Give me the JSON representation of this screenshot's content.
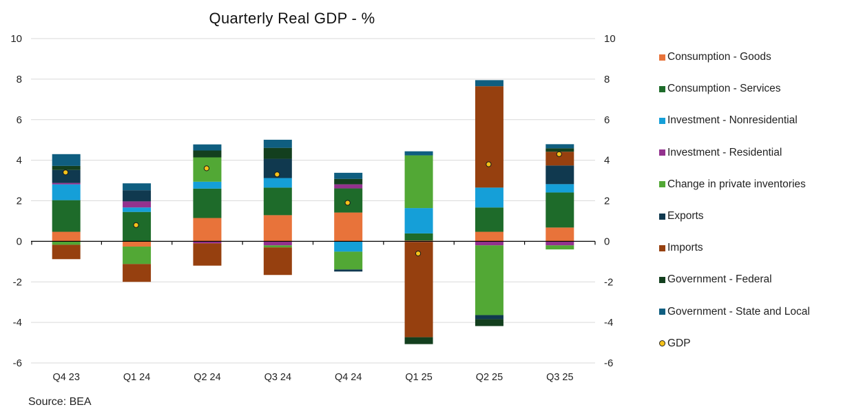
{
  "chart_data": {
    "type": "bar",
    "stacked": true,
    "title": "Quarterly Real GDP - %",
    "source": "Source: BEA",
    "xlabel": "",
    "ylabel": "",
    "ylim": [
      -6,
      10
    ],
    "yticks": [
      10,
      8,
      6,
      4,
      2,
      0,
      -2,
      -4,
      -6
    ],
    "secondary_yticks": [
      10,
      8,
      6,
      4,
      2,
      0,
      -2,
      -4,
      -6
    ],
    "grid": true,
    "legend_position": "right",
    "categories": [
      "Q4 23",
      "Q1 24",
      "Q2 24",
      "Q3 24",
      "Q4 24",
      "Q1 25",
      "Q2 25",
      "Q3 25"
    ],
    "series": [
      {
        "name": "Consumption - Goods",
        "color": "#E8733A",
        "values": [
          0.47,
          -0.26,
          1.15,
          1.29,
          1.42,
          0.04,
          0.47,
          0.68
        ]
      },
      {
        "name": "Consumption - Services",
        "color": "#1E6B2A",
        "values": [
          1.56,
          1.45,
          1.45,
          1.36,
          1.19,
          0.35,
          1.2,
          1.73
        ]
      },
      {
        "name": "Investment - Nonresidential",
        "color": "#159FD8",
        "values": [
          0.78,
          0.22,
          0.34,
          0.47,
          -0.51,
          1.25,
          0.98,
          0.41
        ]
      },
      {
        "name": "Investment - Residential",
        "color": "#93328E",
        "values": [
          0.07,
          0.3,
          -0.1,
          -0.2,
          0.2,
          -0.03,
          -0.2,
          -0.2
        ]
      },
      {
        "name": "Change in private inventories",
        "color": "#52A835",
        "values": [
          -0.17,
          -0.86,
          1.2,
          -0.1,
          -0.88,
          2.6,
          -3.44,
          -0.2
        ]
      },
      {
        "name": "Exports",
        "color": "#10394F",
        "values": [
          0.64,
          0.55,
          0.0,
          0.95,
          -0.1,
          0.0,
          -0.2,
          0.92
        ]
      },
      {
        "name": "Imports",
        "color": "#96400F",
        "values": [
          -0.71,
          -0.88,
          -1.1,
          -1.36,
          0.0,
          -4.7,
          5.0,
          0.68
        ]
      },
      {
        "name": "Government - Federal",
        "color": "#133F1E",
        "values": [
          0.2,
          0.0,
          0.34,
          0.54,
          0.27,
          -0.34,
          -0.34,
          0.17
        ]
      },
      {
        "name": "Government - State and Local",
        "color": "#0F5E80",
        "values": [
          0.58,
          0.34,
          0.3,
          0.4,
          0.3,
          0.2,
          0.3,
          0.2
        ]
      }
    ],
    "line_series": {
      "name": "GDP",
      "type": "scatter",
      "color": "#F5C21A",
      "values": [
        3.4,
        0.8,
        3.6,
        3.3,
        1.9,
        -0.6,
        3.8,
        4.3
      ]
    }
  },
  "legend": {
    "items": [
      {
        "label": "Consumption - Goods",
        "color": "#E8733A",
        "kind": "square"
      },
      {
        "label": "Consumption - Services",
        "color": "#1E6B2A",
        "kind": "square"
      },
      {
        "label": "Investment - Nonresidential",
        "color": "#159FD8",
        "kind": "square"
      },
      {
        "label": "Investment - Residential",
        "color": "#93328E",
        "kind": "square"
      },
      {
        "label": "Change in private inventories",
        "color": "#52A835",
        "kind": "square"
      },
      {
        "label": "Exports",
        "color": "#10394F",
        "kind": "square"
      },
      {
        "label": "Imports",
        "color": "#96400F",
        "kind": "square"
      },
      {
        "label": "Government - Federal",
        "color": "#133F1E",
        "kind": "square"
      },
      {
        "label": "Government - State and Local",
        "color": "#0F5E80",
        "kind": "square"
      },
      {
        "label": "GDP",
        "color": "#F5C21A",
        "kind": "dot"
      }
    ]
  }
}
